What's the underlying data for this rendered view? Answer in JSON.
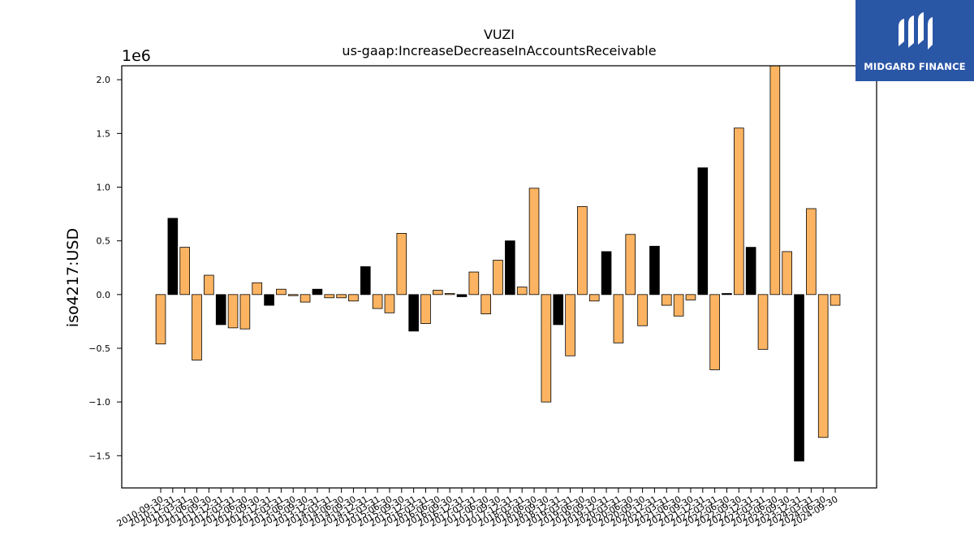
{
  "brand": {
    "name": "MIDGARD FINANCE",
    "bg_color": "#2a56a6"
  },
  "chart_data": {
    "type": "bar",
    "title": "VUZI",
    "subtitle": "us-gaap:IncreaseDecreaseInAccountsReceivable",
    "ylabel": "iso4217:USD",
    "y_scale_label": "1e6",
    "ylim": [
      -1.8,
      2.13
    ],
    "yticks": [
      -1.5,
      -1.0,
      -0.5,
      0.0,
      0.5,
      1.0,
      1.5,
      2.0
    ],
    "ytick_labels": [
      "−1.5",
      "−1.0",
      "−0.5",
      "0.0",
      "0.5",
      "1.0",
      "1.5",
      "2.0"
    ],
    "colors": {
      "quarterly": "#fdb462",
      "annual": "#000000"
    },
    "bars": [
      {
        "x": "2010-09-30",
        "v": -0.46,
        "t": "q"
      },
      {
        "x": "2010-12-31",
        "v": 0.71,
        "t": "a"
      },
      {
        "x": "2011-03-31",
        "v": 0.44,
        "t": "q"
      },
      {
        "x": "2011-06-30",
        "v": -0.61,
        "t": "q"
      },
      {
        "x": "2011-09-30",
        "v": 0.18,
        "t": "q"
      },
      {
        "x": "2011-12-31",
        "v": -0.28,
        "t": "a"
      },
      {
        "x": "2012-03-31",
        "v": -0.31,
        "t": "q"
      },
      {
        "x": "2012-06-30",
        "v": -0.32,
        "t": "q"
      },
      {
        "x": "2012-09-30",
        "v": 0.11,
        "t": "q"
      },
      {
        "x": "2012-12-31",
        "v": -0.1,
        "t": "a"
      },
      {
        "x": "2013-03-31",
        "v": 0.05,
        "t": "q"
      },
      {
        "x": "2013-06-30",
        "v": -0.01,
        "t": "q"
      },
      {
        "x": "2013-09-30",
        "v": -0.07,
        "t": "q"
      },
      {
        "x": "2013-12-31",
        "v": 0.05,
        "t": "a"
      },
      {
        "x": "2014-03-31",
        "v": -0.03,
        "t": "q"
      },
      {
        "x": "2014-06-30",
        "v": -0.03,
        "t": "q"
      },
      {
        "x": "2014-09-30",
        "v": -0.06,
        "t": "q"
      },
      {
        "x": "2014-12-31",
        "v": 0.26,
        "t": "a"
      },
      {
        "x": "2015-03-31",
        "v": -0.13,
        "t": "q"
      },
      {
        "x": "2015-06-30",
        "v": -0.17,
        "t": "q"
      },
      {
        "x": "2015-09-30",
        "v": 0.57,
        "t": "q"
      },
      {
        "x": "2015-12-31",
        "v": -0.34,
        "t": "a"
      },
      {
        "x": "2016-03-31",
        "v": -0.27,
        "t": "q"
      },
      {
        "x": "2016-06-30",
        "v": 0.04,
        "t": "q"
      },
      {
        "x": "2016-09-30",
        "v": 0.01,
        "t": "q"
      },
      {
        "x": "2016-12-31",
        "v": -0.02,
        "t": "a"
      },
      {
        "x": "2017-03-31",
        "v": 0.21,
        "t": "q"
      },
      {
        "x": "2017-06-30",
        "v": -0.18,
        "t": "q"
      },
      {
        "x": "2017-09-30",
        "v": 0.32,
        "t": "q"
      },
      {
        "x": "2017-12-31",
        "v": 0.5,
        "t": "a"
      },
      {
        "x": "2018-03-31",
        "v": 0.07,
        "t": "q"
      },
      {
        "x": "2018-06-30",
        "v": 0.99,
        "t": "q"
      },
      {
        "x": "2018-09-30",
        "v": -1.0,
        "t": "q"
      },
      {
        "x": "2018-12-31",
        "v": -0.28,
        "t": "a"
      },
      {
        "x": "2019-03-31",
        "v": -0.57,
        "t": "q"
      },
      {
        "x": "2019-06-30",
        "v": 0.82,
        "t": "q"
      },
      {
        "x": "2019-09-30",
        "v": -0.06,
        "t": "q"
      },
      {
        "x": "2019-12-31",
        "v": 0.4,
        "t": "a"
      },
      {
        "x": "2020-03-31",
        "v": -0.45,
        "t": "q"
      },
      {
        "x": "2020-06-30",
        "v": 0.56,
        "t": "q"
      },
      {
        "x": "2020-09-30",
        "v": -0.29,
        "t": "q"
      },
      {
        "x": "2020-12-31",
        "v": 0.45,
        "t": "a"
      },
      {
        "x": "2021-03-31",
        "v": -0.1,
        "t": "q"
      },
      {
        "x": "2021-06-30",
        "v": -0.2,
        "t": "q"
      },
      {
        "x": "2021-09-30",
        "v": -0.05,
        "t": "q"
      },
      {
        "x": "2021-12-31",
        "v": 1.18,
        "t": "a"
      },
      {
        "x": "2022-03-31",
        "v": -0.7,
        "t": "q"
      },
      {
        "x": "2022-06-30",
        "v": 0.01,
        "t": "a"
      },
      {
        "x": "2022-09-30",
        "v": 1.55,
        "t": "q"
      },
      {
        "x": "2022-12-31",
        "v": 0.44,
        "t": "a"
      },
      {
        "x": "2023-03-31",
        "v": -0.51,
        "t": "q"
      },
      {
        "x": "2023-06-30",
        "v": 2.13,
        "t": "q"
      },
      {
        "x": "2023-09-30",
        "v": 0.4,
        "t": "q"
      },
      {
        "x": "2023-12-31",
        "v": -1.55,
        "t": "a"
      },
      {
        "x": "2024-03-31",
        "v": 0.8,
        "t": "q"
      },
      {
        "x": "2024-06-30",
        "v": -1.33,
        "t": "q"
      },
      {
        "x": "2024-09-30",
        "v": -0.1,
        "t": "q"
      }
    ]
  }
}
